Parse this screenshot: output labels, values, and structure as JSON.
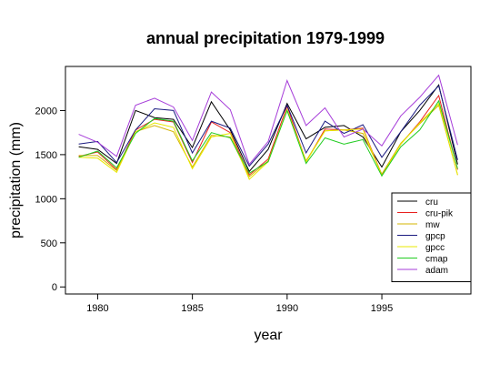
{
  "chart_data": {
    "type": "line",
    "title": "annual precipitation 1979-1999",
    "xlabel": "year",
    "ylabel": "precipitation (mm)",
    "xlim": [
      1978.3,
      1999.7
    ],
    "ylim": [
      -80,
      2500
    ],
    "xticks": [
      1980,
      1985,
      1990,
      1995
    ],
    "yticks": [
      0,
      500,
      1000,
      1500,
      2000
    ],
    "legend_position": "bottom-right",
    "grid": false,
    "x": [
      1979,
      1980,
      1981,
      1982,
      1983,
      1984,
      1985,
      1986,
      1987,
      1988,
      1989,
      1990,
      1991,
      1992,
      1993,
      1994,
      1995,
      1996,
      1997,
      1998,
      1999
    ],
    "series": [
      {
        "name": "cru",
        "color": "#000000",
        "values": [
          1590,
          1560,
          1400,
          2000,
          1920,
          1900,
          1580,
          2100,
          1780,
          1310,
          1560,
          2080,
          1680,
          1810,
          1830,
          1700,
          1360,
          1760,
          2000,
          2290,
          1390
        ]
      },
      {
        "name": "cru-pik",
        "color": "#e8201e",
        "values": [
          1480,
          1530,
          1330,
          1780,
          1900,
          1870,
          1410,
          1870,
          1750,
          1270,
          1450,
          2050,
          1420,
          1790,
          1780,
          1800,
          1270,
          1620,
          1870,
          2170,
          1330
        ]
      },
      {
        "name": "mw",
        "color": "#d4b400",
        "values": [
          1490,
          1490,
          1320,
          1760,
          1830,
          1760,
          1360,
          1720,
          1700,
          1250,
          1430,
          2000,
          1430,
          1770,
          1780,
          1740,
          1280,
          1630,
          1850,
          2060,
          1270
        ]
      },
      {
        "name": "gpcp",
        "color": "#1a1a80",
        "values": [
          1620,
          1650,
          1410,
          1780,
          2020,
          2000,
          1520,
          1880,
          1800,
          1370,
          1620,
          2060,
          1520,
          1880,
          1740,
          1840,
          1470,
          1760,
          2060,
          2280,
          1440
        ]
      },
      {
        "name": "gpcc",
        "color": "#e8e800",
        "values": [
          1470,
          1460,
          1300,
          1760,
          1860,
          1810,
          1340,
          1700,
          1740,
          1220,
          1420,
          2010,
          1420,
          1770,
          1780,
          1790,
          1260,
          1620,
          1860,
          2080,
          1270
        ]
      },
      {
        "name": "cmap",
        "color": "#22cc22",
        "values": [
          1470,
          1540,
          1350,
          1740,
          1910,
          1880,
          1430,
          1750,
          1690,
          1290,
          1420,
          2000,
          1400,
          1690,
          1620,
          1670,
          1260,
          1590,
          1780,
          2110,
          1340
        ]
      },
      {
        "name": "adam",
        "color": "#a63dd9",
        "values": [
          1730,
          1640,
          1480,
          2060,
          2140,
          2040,
          1660,
          2210,
          2010,
          1390,
          1650,
          2340,
          1830,
          2030,
          1700,
          1790,
          1600,
          1940,
          2150,
          2400,
          1610
        ]
      }
    ]
  }
}
